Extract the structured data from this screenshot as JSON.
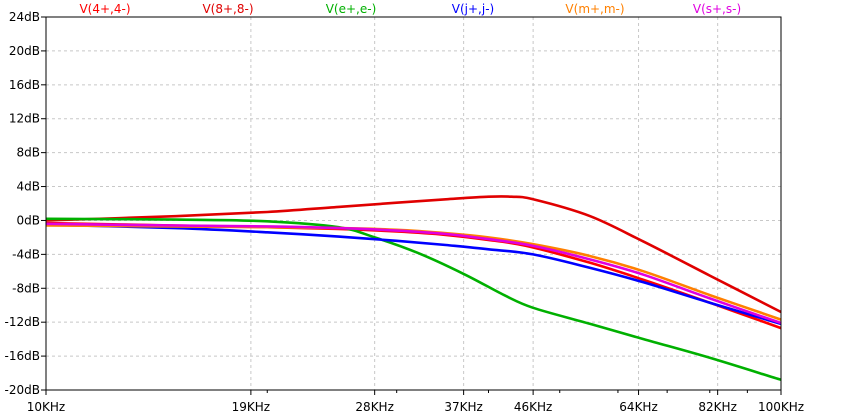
{
  "chart_data": {
    "type": "line",
    "title": "",
    "xlabel": "",
    "ylabel": "",
    "x_scale": "log",
    "xlim": [
      10000,
      100000
    ],
    "ylim": [
      -20,
      24
    ],
    "grid": true,
    "legend_placement": "top",
    "x_ticks": [
      {
        "value": 10000,
        "label": "10KHz"
      },
      {
        "value": 19000,
        "label": "19KHz"
      },
      {
        "value": 28000,
        "label": "28KHz"
      },
      {
        "value": 37000,
        "label": "37KHz"
      },
      {
        "value": 46000,
        "label": "46KHz"
      },
      {
        "value": 64000,
        "label": "64KHz"
      },
      {
        "value": 82000,
        "label": "82KHz"
      },
      {
        "value": 100000,
        "label": "100KHz"
      }
    ],
    "y_ticks": [
      {
        "value": 24,
        "label": "24dB"
      },
      {
        "value": 20,
        "label": "20dB"
      },
      {
        "value": 16,
        "label": "16dB"
      },
      {
        "value": 12,
        "label": "12dB"
      },
      {
        "value": 8,
        "label": "8dB"
      },
      {
        "value": 4,
        "label": "4dB"
      },
      {
        "value": 0,
        "label": "0dB"
      },
      {
        "value": -4,
        "label": "-4dB"
      },
      {
        "value": -8,
        "label": "-8dB"
      },
      {
        "value": -12,
        "label": "-12dB"
      },
      {
        "value": -16,
        "label": "-16dB"
      },
      {
        "value": -20,
        "label": "-20dB"
      }
    ],
    "series": [
      {
        "name": "V(4+,4-)",
        "color": "#ff0000",
        "x": [
          10000,
          15000,
          20000,
          25000,
          30000,
          35000,
          40000,
          45000,
          55000,
          65000,
          80000,
          100000
        ],
        "y": [
          -0.3,
          -0.6,
          -0.8,
          -1.0,
          -1.3,
          -1.7,
          -2.3,
          -3.0,
          -5.0,
          -7.0,
          -9.7,
          -12.7
        ]
      },
      {
        "name": "V(8+,8-)",
        "color": "#e00000",
        "x": [
          10000,
          15000,
          20000,
          25000,
          30000,
          35000,
          40000,
          43000,
          46000,
          55000,
          65000,
          80000,
          100000
        ],
        "y": [
          0.0,
          0.5,
          1.0,
          1.6,
          2.1,
          2.5,
          2.8,
          2.8,
          2.5,
          0.5,
          -2.5,
          -6.5,
          -10.8
        ]
      },
      {
        "name": "V(e+,e-)",
        "color": "#00b000",
        "x": [
          10000,
          15000,
          20000,
          25000,
          28000,
          32000,
          37000,
          42000,
          46000,
          55000,
          65000,
          80000,
          100000
        ],
        "y": [
          0.2,
          0.1,
          -0.1,
          -0.8,
          -2.0,
          -3.8,
          -6.3,
          -8.8,
          -10.3,
          -12.2,
          -14.0,
          -16.2,
          -18.8
        ]
      },
      {
        "name": "V(j+,j-)",
        "color": "#0000ff",
        "x": [
          10000,
          15000,
          20000,
          25000,
          30000,
          35000,
          40000,
          46000,
          55000,
          65000,
          80000,
          100000
        ],
        "y": [
          -0.5,
          -0.9,
          -1.4,
          -1.9,
          -2.4,
          -2.9,
          -3.4,
          -4.0,
          -5.6,
          -7.3,
          -9.7,
          -12.2
        ]
      },
      {
        "name": "V(m+,m-)",
        "color": "#ff8000",
        "x": [
          10000,
          15000,
          20000,
          25000,
          30000,
          35000,
          40000,
          46000,
          55000,
          65000,
          80000,
          100000
        ],
        "y": [
          -0.6,
          -0.7,
          -0.8,
          -0.9,
          -1.1,
          -1.5,
          -2.0,
          -2.8,
          -4.2,
          -6.0,
          -8.8,
          -11.7
        ]
      },
      {
        "name": "V(s+,s-)",
        "color": "#e000e0",
        "x": [
          10000,
          15000,
          20000,
          25000,
          30000,
          35000,
          40000,
          46000,
          55000,
          65000,
          80000,
          100000
        ],
        "y": [
          -0.4,
          -0.6,
          -0.7,
          -0.9,
          -1.2,
          -1.6,
          -2.2,
          -3.0,
          -4.6,
          -6.4,
          -9.2,
          -12.1
        ]
      }
    ]
  }
}
